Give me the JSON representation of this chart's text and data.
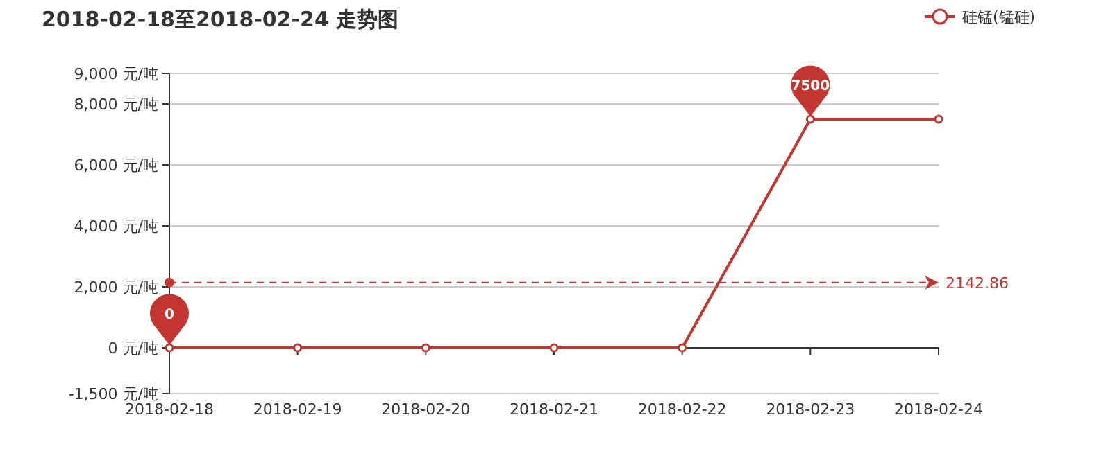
{
  "chart_data": {
    "type": "line",
    "title": "2018-02-18至2018-02-24 走势图",
    "categories": [
      "2018-02-18",
      "2018-02-19",
      "2018-02-20",
      "2018-02-21",
      "2018-02-22",
      "2018-02-23",
      "2018-02-24"
    ],
    "series": [
      {
        "name": "硅锰(锰硅)",
        "color": "#c23531",
        "values": [
          0,
          0,
          0,
          0,
          0,
          7500,
          7500
        ]
      }
    ],
    "ylim": [
      -1500,
      9000
    ],
    "yticks": [
      {
        "value": -1500,
        "label": "-1,500 元/吨"
      },
      {
        "value": 0,
        "label": "0 元/吨"
      },
      {
        "value": 2000,
        "label": "2,000 元/吨"
      },
      {
        "value": 4000,
        "label": "4,000 元/吨"
      },
      {
        "value": 6000,
        "label": "6,000 元/吨"
      },
      {
        "value": 8000,
        "label": "8,000 元/吨"
      },
      {
        "value": 9000,
        "label": "9,000 元/吨"
      }
    ],
    "grid": "y",
    "legend": "top right",
    "marker": "circle",
    "ref_lines": [
      {
        "axis": "y",
        "value": 2142.86,
        "label": "2142.86",
        "color": "#c23531",
        "line_style": "dashed"
      }
    ],
    "annotations": [
      {
        "text": "0",
        "x": "2018-02-18",
        "y": 0
      },
      {
        "text": "7500",
        "x": "2018-02-23",
        "y": 7500
      }
    ]
  }
}
